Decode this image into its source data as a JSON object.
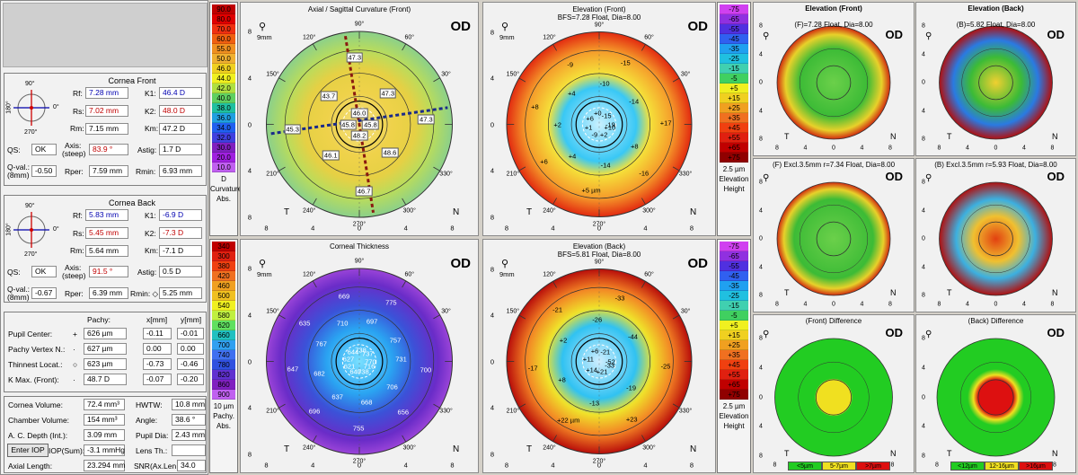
{
  "od_label": "OD",
  "pupil_ring_label": "9mm",
  "axis_ticks": {
    "top": "90°",
    "tl": "120°",
    "tr": "60°",
    "left150": "150°",
    "right30": "30°",
    "bl": "240°",
    "br": "300°",
    "left210": "210°",
    "right330": "330°",
    "bottom": "270°",
    "zero": "0"
  },
  "side_letters": {
    "t": "T",
    "n": "N"
  },
  "xticks": [
    "8",
    "4",
    "0",
    "4",
    "8"
  ],
  "yticks": [
    "8",
    "4",
    "0",
    "4",
    "8"
  ],
  "small_xticks": [
    "8",
    "4",
    "0",
    "4",
    "8"
  ],
  "small_yticks": [
    "8",
    "4",
    "0",
    "4",
    "8"
  ],
  "cornea_front": {
    "title": "Cornea Front",
    "rf_label": "Rf:",
    "rf": "7.28 mm",
    "k1_label": "K1:",
    "k1": "46.4 D",
    "rs_label": "Rs:",
    "rs": "7.02 mm",
    "k2_label": "K2:",
    "k2": "48.0 D",
    "rm_label": "Rm:",
    "rm": "7.15 mm",
    "km_label": "Km:",
    "km": "47.2 D",
    "qs_label": "QS:",
    "qs": "OK",
    "axis_label": "Axis:",
    "axis_sub": "(steep)",
    "axis": "83.9 °",
    "astig_label": "Astig:",
    "astig": "1.7 D",
    "qval_label": "Q-val.:",
    "qval_sub": "(8mm)",
    "qval": "-0.50",
    "rper_label": "Rper:",
    "rper": "7.59 mm",
    "rmin_label": "Rmin:",
    "rmin": "6.93 mm",
    "dial": {
      "top": "90°",
      "left": "180°",
      "right": "0°",
      "bottom": "270°"
    }
  },
  "cornea_back": {
    "title": "Cornea Back",
    "rf_label": "Rf:",
    "rf": "5.83 mm",
    "k1_label": "K1:",
    "k1": "-6.9 D",
    "rs_label": "Rs:",
    "rs": "5.45 mm",
    "k2_label": "K2:",
    "k2": "-7.3 D",
    "rm_label": "Rm:",
    "rm": "5.64 mm",
    "km_label": "Km:",
    "km": "-7.1 D",
    "qs_label": "QS:",
    "qs": "OK",
    "axis_label": "Axis:",
    "axis_sub": "(steep)",
    "axis": "91.5 °",
    "astig_label": "Astig:",
    "astig": "0.5 D",
    "qval_label": "Q-val.:",
    "qval_sub": "(8mm)",
    "qval": "-0.67",
    "rper_label": "Rper:",
    "rper": "6.39 mm",
    "rmin_label": "Rmin: ◇",
    "rmin": "5.25 mm",
    "dial": {
      "top": "90°",
      "left": "180°",
      "right": "0°",
      "bottom": "270°"
    }
  },
  "pachy": {
    "head_pachy": "Pachy:",
    "head_x": "x[mm]",
    "head_y": "y[mm]",
    "rows": [
      {
        "label": "Pupil Center:",
        "sym": "+",
        "pachy": "626 µm",
        "x": "-0.11",
        "y": "-0.01"
      },
      {
        "label": "Pachy Vertex N.:",
        "sym": "·",
        "pachy": "627 µm",
        "x": "0.00",
        "y": "0.00"
      },
      {
        "label": "Thinnest Locat.:",
        "sym": "○",
        "pachy": "623 µm",
        "x": "-0.73",
        "y": "-0.46"
      },
      {
        "label": "K Max. (Front):",
        "sym": "·",
        "pachy": "48.7 D",
        "x": "-0.07",
        "y": "-0.20"
      }
    ]
  },
  "volume": {
    "cv_label": "Cornea Volume:",
    "cv": "72.4 mm³",
    "hwtw_label": "HWTW:",
    "hwtw": "10.8 mm",
    "chv_label": "Chamber Volume:",
    "chv": "154 mm³",
    "angle_label": "Angle:",
    "angle": "38.6 °",
    "acd_label": "A. C. Depth (Int.):",
    "acd": "3.09 mm",
    "pd_label": "Pupil Dia:",
    "pd": "2.43 mm",
    "iop_btn": "Enter IOP",
    "iop_label": "IOP(Sum):",
    "iop": "-3.1 mmHg",
    "lens_label": "Lens Th.:",
    "lens": "",
    "al_label": "Axial Length:",
    "al": "23.294 mm",
    "snr_label": "SNR(Ax.Len",
    "snr": "34.0"
  },
  "curv_scale": {
    "values": [
      "90.0",
      "80.0",
      "70.0",
      "60.0",
      "55.0",
      "50.0",
      "46.0",
      "44.0",
      "42.0",
      "40.0",
      "38.0",
      "36.0",
      "34.0",
      "32.0",
      "30.0",
      "20.0",
      "10.0"
    ],
    "colors": [
      "#c00000",
      "#e00000",
      "#f03010",
      "#f06010",
      "#f09020",
      "#f0b030",
      "#f0d020",
      "#f0f020",
      "#b0e040",
      "#60d060",
      "#20c0a0",
      "#20a0e0",
      "#2060f0",
      "#4040e0",
      "#8020c0",
      "#a020e0",
      "#c060f0"
    ],
    "unit": "D",
    "label1": "Curvature",
    "label2": "Abs."
  },
  "pachy_scale": {
    "values": [
      "340",
      "300",
      "380",
      "420",
      "460",
      "500",
      "540",
      "580",
      "620",
      "660",
      "700",
      "740",
      "780",
      "820",
      "860",
      "900"
    ],
    "colors": [
      "#c00000",
      "#e02010",
      "#f04010",
      "#f07020",
      "#f0a020",
      "#f0c020",
      "#f0f020",
      "#c0f040",
      "#60e060",
      "#20c0c0",
      "#30a0f0",
      "#4070f0",
      "#3050e0",
      "#6030d0",
      "#8020c0",
      "#c060f0"
    ],
    "unit": "10 µm",
    "label1": "Pachy.",
    "label2": "Abs."
  },
  "elev_scale": {
    "values": [
      "-75",
      "-65",
      "-55",
      "-45",
      "-35",
      "-25",
      "-15",
      "-5",
      "+5",
      "+15",
      "+25",
      "+35",
      "+45",
      "+55",
      "+65",
      "+75"
    ],
    "colors": [
      "#d040f0",
      "#9030e0",
      "#5030e0",
      "#3060f0",
      "#20a0f0",
      "#20c0e0",
      "#40d0b0",
      "#40d060",
      "#f0f020",
      "#f0d020",
      "#f0a020",
      "#f07020",
      "#f04010",
      "#e02010",
      "#c00000",
      "#900000"
    ],
    "unit": "2.5 µm",
    "label1": "Elevation",
    "label2": "Height"
  },
  "axial": {
    "title": "Axial / Sagittal Curvature (Front)",
    "labels": [
      "45.8",
      "47.3",
      "47.3",
      "46.0",
      "43.7",
      "45.3",
      "45.8",
      "46.1",
      "46.7",
      "48.2",
      "48.6",
      "47.3"
    ]
  },
  "ef": {
    "title": "Elevation (Front)",
    "subtitle": "BFS=7.28 Float, Dia=8.00",
    "labels": [
      "-19",
      "-14",
      "-15",
      "-15",
      "-10",
      "-9",
      "+0",
      "+4",
      "+8",
      "+6",
      "+2",
      "+6",
      "+1",
      "+4",
      "+5 µm",
      "-9",
      "-14",
      "-16",
      "+2",
      "+8",
      "+17",
      "+10"
    ]
  },
  "ct": {
    "title": "Corneal Thickness",
    "labels": [
      "770",
      "757",
      "775",
      "737",
      "697",
      "669",
      "738",
      "710",
      "635",
      "644",
      "767",
      "647",
      "627",
      "682",
      "696",
      "621",
      "637",
      "755",
      "640",
      "668",
      "656",
      "738",
      "706",
      "700",
      "716",
      "731"
    ]
  },
  "eb": {
    "title": "Elevation (Back)",
    "subtitle": "BFS=5.81 Float, Dia=8.00",
    "labels": [
      "-52",
      "-44",
      "-33",
      "-21",
      "-26",
      "-21",
      "+6",
      "+2",
      "-17",
      "+11",
      "+8",
      "+22 µm",
      "+14",
      "-13",
      "+23",
      "+21",
      "-19",
      "-25",
      "-33"
    ]
  },
  "sf": {
    "title": "Elevation (Front)",
    "subtitle": "(F)=7.28 Float, Dia=8.00"
  },
  "sb": {
    "title": "Elevation (Back)",
    "subtitle": "(B)=5.82 Float, Dia=8.00"
  },
  "sfe": {
    "title": "(F) Excl.3.5mm  r=7.34 Float, Dia=8.00"
  },
  "sbe": {
    "title": "(B) Excl.3.5mm  r=5.93 Float, Dia=8.00"
  },
  "sfd": {
    "title": "(Front) Difference",
    "legend": [
      "<5µm",
      "5-7µm",
      ">7µm"
    ],
    "legend_colors": [
      "#22cc22",
      "#f0e020",
      "#dd1010"
    ]
  },
  "sbd": {
    "title": "(Back) Difference",
    "legend": [
      "<12µm",
      "12-16µm",
      ">16µm"
    ],
    "legend_colors": [
      "#22cc22",
      "#f0e020",
      "#dd1010"
    ]
  }
}
